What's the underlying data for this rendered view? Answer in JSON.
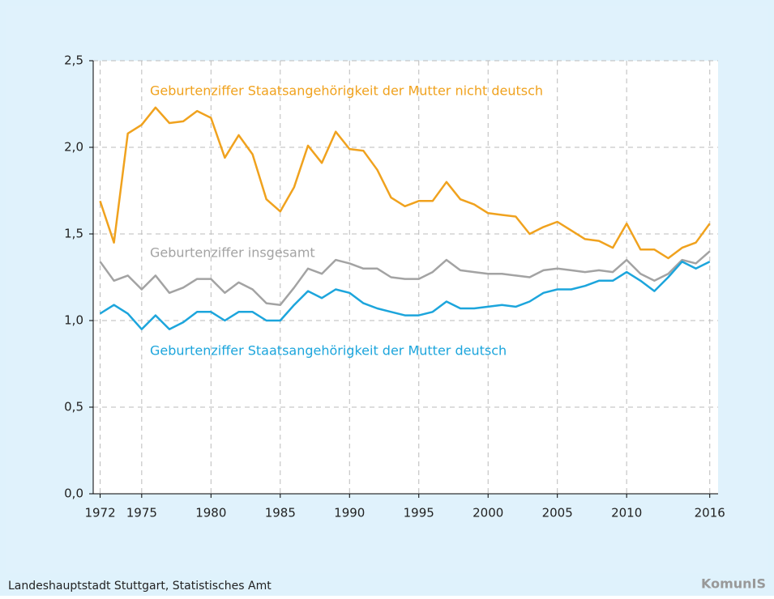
{
  "chart_data": {
    "type": "line",
    "x": [
      1972,
      1973,
      1974,
      1975,
      1976,
      1977,
      1978,
      1979,
      1980,
      1981,
      1982,
      1983,
      1984,
      1985,
      1986,
      1987,
      1988,
      1989,
      1990,
      1991,
      1992,
      1993,
      1994,
      1995,
      1996,
      1997,
      1998,
      1999,
      2000,
      2001,
      2002,
      2003,
      2004,
      2005,
      2006,
      2007,
      2008,
      2009,
      2010,
      2011,
      2012,
      2013,
      2014,
      2015,
      2016
    ],
    "series": [
      {
        "name": "Geburtenziffer Staatsangehörigkeit der Mutter nicht deutsch",
        "color": "#f0a21e",
        "values": [
          1.69,
          1.45,
          2.08,
          2.13,
          2.23,
          2.14,
          2.15,
          2.21,
          2.17,
          1.94,
          2.07,
          1.96,
          1.7,
          1.63,
          1.77,
          2.01,
          1.91,
          2.09,
          1.99,
          1.98,
          1.87,
          1.71,
          1.66,
          1.69,
          1.69,
          1.8,
          1.7,
          1.67,
          1.62,
          1.61,
          1.6,
          1.5,
          1.54,
          1.57,
          1.52,
          1.47,
          1.46,
          1.42,
          1.56,
          1.41,
          1.41,
          1.36,
          1.42,
          1.45,
          1.56
        ]
      },
      {
        "name": "Geburtenziffer insgesamt",
        "color": "#a3a3a3",
        "values": [
          1.34,
          1.23,
          1.26,
          1.18,
          1.26,
          1.16,
          1.19,
          1.24,
          1.24,
          1.16,
          1.22,
          1.18,
          1.1,
          1.09,
          1.19,
          1.3,
          1.27,
          1.35,
          1.33,
          1.3,
          1.3,
          1.25,
          1.24,
          1.24,
          1.28,
          1.35,
          1.29,
          1.28,
          1.27,
          1.27,
          1.26,
          1.25,
          1.29,
          1.3,
          1.29,
          1.28,
          1.29,
          1.28,
          1.35,
          1.27,
          1.23,
          1.27,
          1.35,
          1.33,
          1.4
        ]
      },
      {
        "name": "Geburtenziffer Staatsangehörigkeit der Mutter deutsch",
        "color": "#1ca5dc",
        "values": [
          1.04,
          1.09,
          1.04,
          0.95,
          1.03,
          0.95,
          0.99,
          1.05,
          1.05,
          1.0,
          1.05,
          1.05,
          1.0,
          1.0,
          1.09,
          1.17,
          1.13,
          1.18,
          1.16,
          1.1,
          1.07,
          1.05,
          1.03,
          1.03,
          1.05,
          1.11,
          1.07,
          1.07,
          1.08,
          1.09,
          1.08,
          1.11,
          1.16,
          1.18,
          1.18,
          1.2,
          1.23,
          1.23,
          1.28,
          1.23,
          1.17,
          1.25,
          1.34,
          1.3,
          1.34
        ]
      }
    ],
    "xlim": [
      1971.5,
      2016.6
    ],
    "xticks": [
      1972,
      1975,
      1980,
      1985,
      1990,
      1995,
      2000,
      2005,
      2010,
      2016
    ],
    "ylim": [
      0,
      2.5
    ],
    "yticks": [
      {
        "value": 0,
        "label": "0,0"
      },
      {
        "value": 0.5,
        "label": "0,5"
      },
      {
        "value": 1,
        "label": "1,0"
      },
      {
        "value": 1.5,
        "label": "1,5"
      },
      {
        "value": 2,
        "label": "2,0"
      },
      {
        "value": 2.5,
        "label": "2,5"
      }
    ],
    "grid": true,
    "source": "Landeshauptstadt Stuttgart, Statistisches Amt",
    "logo": "KomunIS"
  }
}
